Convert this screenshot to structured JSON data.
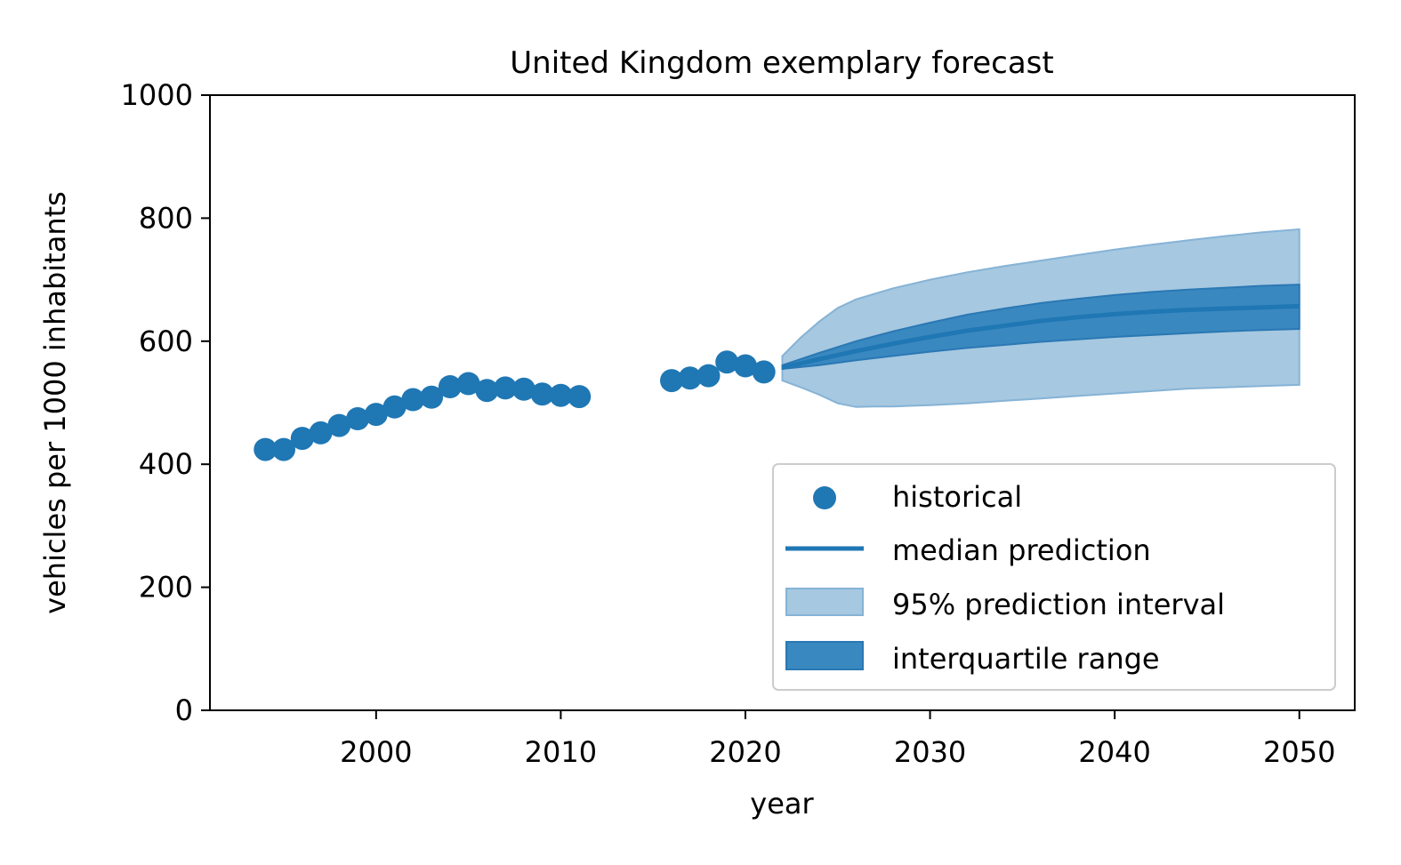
{
  "chart_data": {
    "type": "scatter",
    "title": "United Kingdom exemplary forecast",
    "xlabel": "year",
    "ylabel": "vehicles per 1000 inhabitants",
    "xlim": [
      1991,
      2053
    ],
    "ylim": [
      0,
      1000
    ],
    "xticks": [
      2000,
      2010,
      2020,
      2030,
      2040,
      2050
    ],
    "yticks": [
      0,
      200,
      400,
      600,
      800,
      1000
    ],
    "grid": false,
    "legend_position": "lower-right",
    "colors": {
      "point": "#1f77b4",
      "line": "#1f77b4",
      "band95": "#a6c8e0",
      "iqr": "#3a88c0"
    },
    "legend": [
      {
        "kind": "marker",
        "label": "historical"
      },
      {
        "kind": "line",
        "label": "median prediction"
      },
      {
        "kind": "band95",
        "label": "95% prediction interval"
      },
      {
        "kind": "iqr",
        "label": "interquartile range"
      }
    ],
    "series": [
      {
        "name": "historical",
        "type": "scatter",
        "x": [
          1994,
          1995,
          1996,
          1997,
          1998,
          1999,
          2000,
          2001,
          2002,
          2003,
          2004,
          2005,
          2006,
          2007,
          2008,
          2009,
          2010,
          2011,
          2016,
          2017,
          2018,
          2019,
          2020,
          2021
        ],
        "y": [
          424,
          424,
          442,
          451,
          463,
          474,
          481,
          493,
          505,
          509,
          526,
          531,
          520,
          524,
          522,
          514,
          512,
          510,
          536,
          540,
          544,
          566,
          560,
          550
        ]
      },
      {
        "name": "median prediction",
        "type": "line",
        "x": [
          2022,
          2024,
          2026,
          2028,
          2030,
          2032,
          2034,
          2036,
          2038,
          2040,
          2042,
          2044,
          2046,
          2048,
          2050
        ],
        "y": [
          557,
          571,
          584,
          596,
          607,
          617,
          625,
          633,
          639,
          644,
          648,
          651,
          653,
          655,
          657
        ]
      },
      {
        "name": "95% prediction interval",
        "type": "band",
        "x": [
          2022,
          2023,
          2024,
          2025,
          2026,
          2027,
          2028,
          2030,
          2032,
          2034,
          2036,
          2038,
          2040,
          2042,
          2044,
          2046,
          2048,
          2050
        ],
        "lower": [
          536,
          525,
          513,
          499,
          493,
          494,
          494,
          496,
          499,
          503,
          507,
          511,
          515,
          519,
          523,
          525,
          527,
          529
        ],
        "upper": [
          576,
          606,
          632,
          654,
          668,
          677,
          686,
          700,
          712,
          722,
          731,
          740,
          749,
          757,
          764,
          771,
          777,
          782
        ]
      },
      {
        "name": "interquartile range",
        "type": "band",
        "x": [
          2022,
          2024,
          2026,
          2028,
          2030,
          2032,
          2034,
          2036,
          2038,
          2040,
          2042,
          2044,
          2046,
          2048,
          2050
        ],
        "lower": [
          555,
          561,
          569,
          576,
          583,
          589,
          594,
          599,
          603,
          607,
          610,
          613,
          616,
          618,
          620
        ],
        "upper": [
          561,
          581,
          600,
          616,
          630,
          643,
          653,
          662,
          669,
          675,
          680,
          684,
          687,
          690,
          692
        ]
      }
    ]
  }
}
